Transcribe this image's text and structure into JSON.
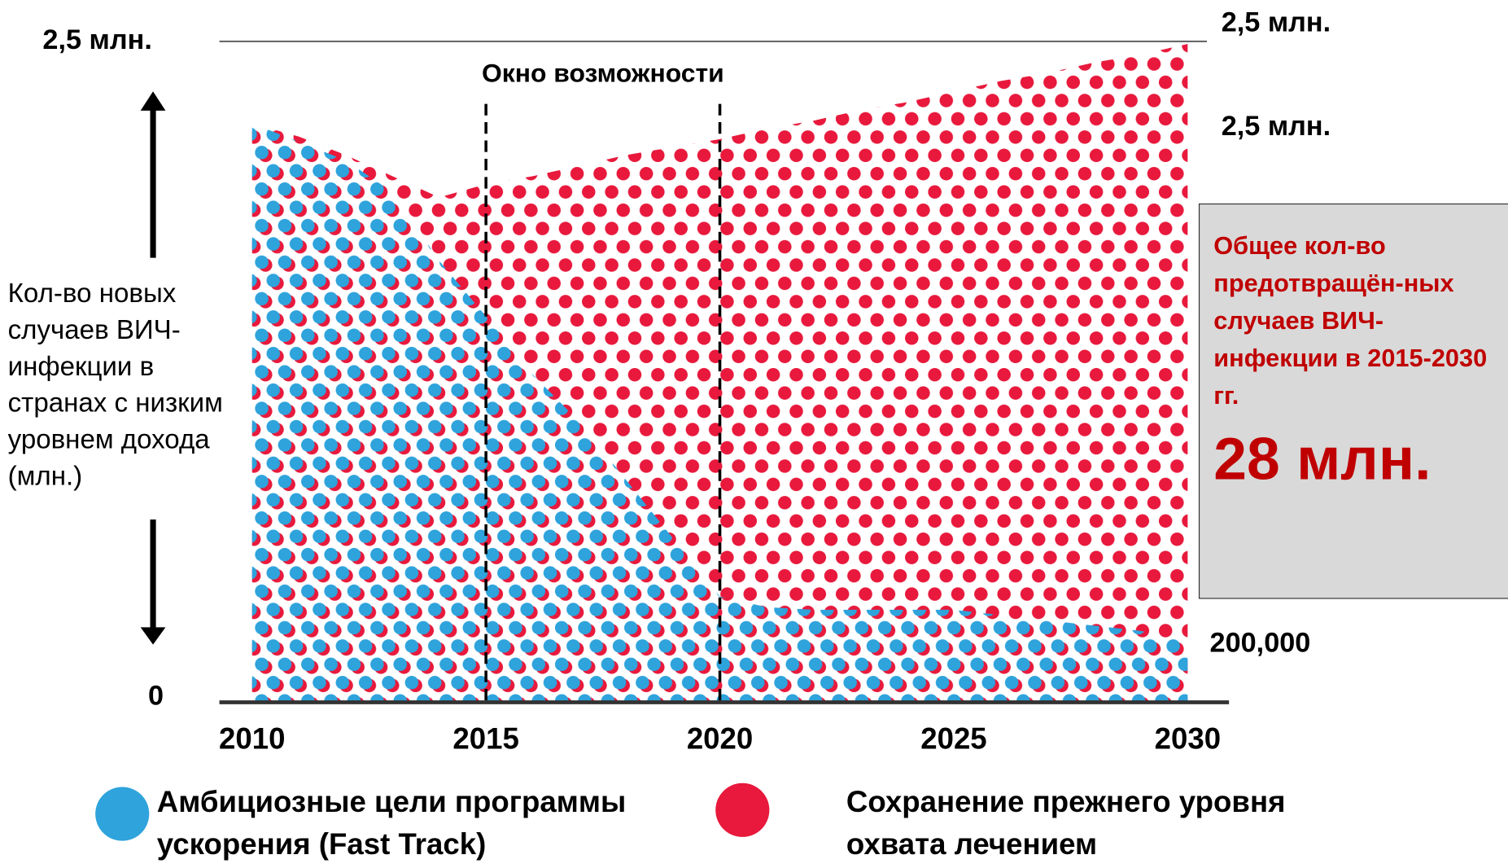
{
  "chart_data": {
    "type": "area",
    "x": [
      2010,
      2011,
      2012,
      2013,
      2014,
      2015,
      2016,
      2017,
      2018,
      2019,
      2020,
      2021,
      2022,
      2023,
      2024,
      2025,
      2026,
      2027,
      2028,
      2029,
      2030
    ],
    "series": [
      {
        "name": "Сохранение прежнего уровня охвата лечением",
        "color": "#e8193c",
        "values": [
          2.19,
          2.14,
          2.07,
          1.99,
          1.91,
          1.96,
          1.99,
          2.03,
          2.07,
          2.1,
          2.13,
          2.17,
          2.2,
          2.24,
          2.27,
          2.31,
          2.35,
          2.38,
          2.42,
          2.45,
          2.49
        ]
      },
      {
        "name": "Амбициозные цели программы ускорения (Fast Track)",
        "color": "#2ea3dc",
        "values": [
          2.19,
          2.12,
          2.05,
          1.93,
          1.67,
          1.46,
          1.24,
          1.06,
          0.84,
          0.62,
          0.4,
          0.36,
          0.35,
          0.35,
          0.35,
          0.35,
          0.33,
          0.31,
          0.29,
          0.27,
          0.24
        ]
      }
    ],
    "xlim": [
      2010,
      2030
    ],
    "xticks": [
      2010,
      2015,
      2020,
      2025,
      2030
    ],
    "ylim": [
      0,
      2.5
    ],
    "yticks": [
      0,
      {
        "value": 2.5,
        "label": "2,5 млн."
      }
    ],
    "ylabel": "Кол-во новых случаев ВИЧ-инфекции в странах с низким уровнем дохода (млн.)",
    "window": {
      "label": "Окно возможности",
      "range": [
        2015,
        2020
      ]
    },
    "annotations": [
      "2,5 млн.",
      "2,5 млн.",
      "200,000"
    ],
    "box": {
      "text": "Общее кол-во предотвращён-ных случаев ВИЧ-инфекции в 2015-2030 гг.",
      "value": "28 млн."
    }
  }
}
